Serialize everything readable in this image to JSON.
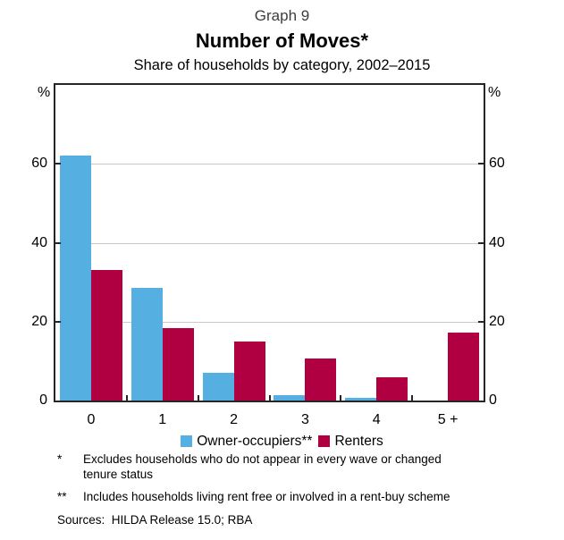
{
  "header": {
    "graph_number": "Graph 9",
    "title": "Number of Moves*",
    "subtitle": "Share of households by category, 2002–2015"
  },
  "chart_data": {
    "type": "bar",
    "categories": [
      "0",
      "1",
      "2",
      "3",
      "4",
      "5 +"
    ],
    "series": [
      {
        "name": "Owner-occupiers**",
        "color": "#56AFE1",
        "values": [
          62,
          28.5,
          7,
          1.3,
          0.7,
          0
        ]
      },
      {
        "name": "Renters",
        "color": "#B00041",
        "values": [
          33,
          18.3,
          15,
          10.6,
          5.9,
          17.2
        ]
      }
    ],
    "title": "Number of Moves*",
    "subtitle": "Share of households by category, 2002–2015",
    "xlabel": "",
    "ylabel": "%",
    "unit_symbol": "%",
    "ylim": [
      0,
      80
    ],
    "yticks": [
      0,
      20,
      40,
      60
    ],
    "grid": "horizontal",
    "grid_color": "#c9c9c9",
    "frame_color": "#262626",
    "legend_position": "bottom-center",
    "unit_labels_both_sides": true
  },
  "footnotes": {
    "fn1": {
      "marker": "*",
      "lines": [
        "Excludes households who do not appear in every wave or changed",
        "tenure status"
      ]
    },
    "fn2": {
      "marker": "**",
      "lines": [
        "Includes households living rent free or involved in a rent-buy scheme"
      ]
    },
    "sources": "Sources:  HILDA Release 15.0; RBA"
  }
}
